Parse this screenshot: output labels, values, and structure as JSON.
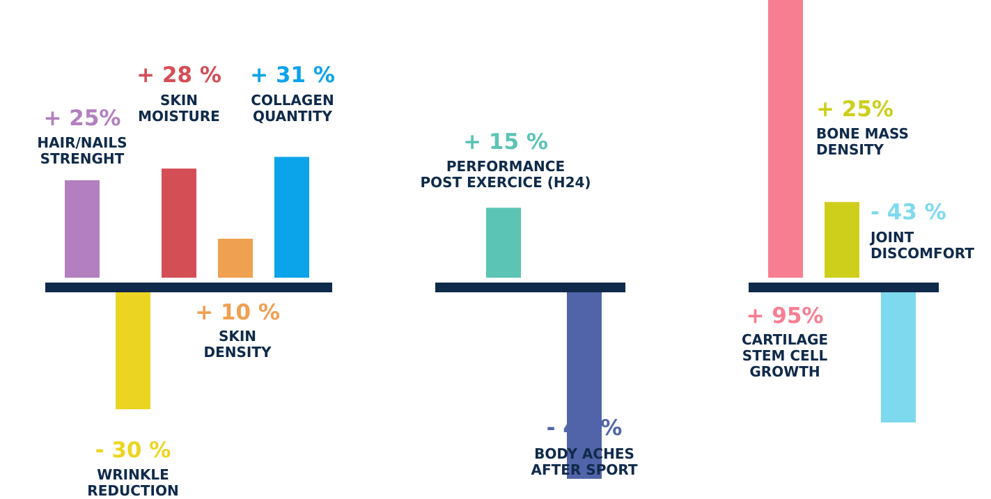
{
  "chart_data": [
    {
      "type": "bar",
      "categories": [
        "HAIR/NAILS STRENGHT",
        "WRINKLE REDUCTION",
        "SKIN MOISTURE",
        "SKIN DENSITY",
        "COLLAGEN QUANTITY"
      ],
      "values": [
        25,
        -30,
        28,
        10,
        31
      ],
      "value_labels": [
        "+ 25%",
        "- 30 %",
        "+ 28 %",
        "+ 10 %",
        "+ 31 %"
      ],
      "colors": [
        "#b37fc0",
        "#ecd522",
        "#d44e55",
        "#f0a051",
        "#0ba3ea"
      ],
      "label_lines": [
        [
          "HAIR/NAILS",
          "STRENGHT"
        ],
        [
          "WRINKLE",
          "REDUCTION"
        ],
        [
          "SKIN",
          "MOISTURE"
        ],
        [
          "SKIN",
          "DENSITY"
        ],
        [
          "COLLAGEN",
          "QUANTITY"
        ]
      ]
    },
    {
      "type": "bar",
      "categories": [
        "PERFORMANCE POST EXERCICE (H24)",
        "BODY ACHES AFTER SPORT"
      ],
      "values": [
        15,
        -40
      ],
      "value_labels": [
        "+ 15 %",
        "- 40 %"
      ],
      "colors": [
        "#5cc4b4",
        "#5164a9"
      ],
      "label_lines": [
        [
          "PERFORMANCE",
          "POST EXERCICE (H24)"
        ],
        [
          "BODY ACHES",
          "AFTER SPORT"
        ]
      ]
    },
    {
      "type": "bar",
      "categories": [
        "CARTILAGE STEM CELL GROWTH",
        "BONE MASS DENSITY",
        "JOINT DISCOMFORT"
      ],
      "values": [
        95,
        25,
        -43
      ],
      "value_labels": [
        "+ 95%",
        "+ 25%",
        "- 43 %"
      ],
      "colors": [
        "#f77e91",
        "#cdcf1a",
        "#7fd9ee"
      ],
      "label_lines": [
        [
          "CARTILAGE",
          "STEM CELL",
          "GROWTH"
        ],
        [
          "BONE MASS",
          "DENSITY"
        ],
        [
          "JOINT",
          "DISCOMFORT"
        ]
      ]
    }
  ],
  "colors": {
    "axis": "#0f2a4a",
    "caption": "#0f2a4a"
  }
}
